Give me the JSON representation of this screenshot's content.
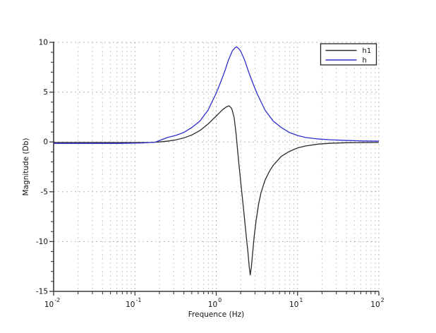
{
  "figure": {
    "background": "#ffffff"
  },
  "chart_data": {
    "type": "line",
    "title": "",
    "xlabel": "Frequence (Hz)",
    "ylabel": "Magnitude (Db)",
    "x_scale": "log",
    "y_scale": "linear",
    "xlim": [
      0.01,
      100
    ],
    "ylim": [
      -15,
      10
    ],
    "x_tick_base": "10",
    "x_tick_exponents": [
      -2,
      -1,
      0,
      1,
      2
    ],
    "y_tick_values": [
      10,
      5,
      0,
      -5,
      -10,
      -15
    ],
    "y_minor_step": 1,
    "grid": true,
    "grid_style": "dashed",
    "legend": {
      "position": "top-right",
      "entries": [
        "h1",
        "h"
      ]
    },
    "series": [
      {
        "name": "h1",
        "color": "#2b2b2b",
        "points": [
          [
            0.01,
            -0.05
          ],
          [
            0.02,
            -0.05
          ],
          [
            0.0316,
            -0.05
          ],
          [
            0.0631,
            -0.06
          ],
          [
            0.1,
            -0.06
          ],
          [
            0.158,
            -0.05
          ],
          [
            0.2,
            0.0
          ],
          [
            0.251,
            0.08
          ],
          [
            0.316,
            0.2
          ],
          [
            0.398,
            0.4
          ],
          [
            0.501,
            0.7
          ],
          [
            0.631,
            1.15
          ],
          [
            0.794,
            1.8
          ],
          [
            1.0,
            2.6
          ],
          [
            1.2,
            3.25
          ],
          [
            1.35,
            3.55
          ],
          [
            1.445,
            3.62
          ],
          [
            1.55,
            3.35
          ],
          [
            1.66,
            2.45
          ],
          [
            1.76,
            0.7
          ],
          [
            1.82,
            -0.6
          ],
          [
            1.91,
            -2.4
          ],
          [
            2.0,
            -4.0
          ],
          [
            2.14,
            -6.3
          ],
          [
            2.29,
            -8.7
          ],
          [
            2.45,
            -11.0
          ],
          [
            2.55,
            -12.6
          ],
          [
            2.62,
            -13.35
          ],
          [
            2.7,
            -12.6
          ],
          [
            2.8,
            -11.2
          ],
          [
            2.92,
            -9.6
          ],
          [
            3.09,
            -7.9
          ],
          [
            3.31,
            -6.3
          ],
          [
            3.55,
            -5.1
          ],
          [
            3.98,
            -3.85
          ],
          [
            4.47,
            -3.0
          ],
          [
            5.01,
            -2.35
          ],
          [
            6.31,
            -1.45
          ],
          [
            7.94,
            -0.95
          ],
          [
            10,
            -0.6
          ],
          [
            12.6,
            -0.4
          ],
          [
            17.8,
            -0.22
          ],
          [
            25.1,
            -0.13
          ],
          [
            39.8,
            -0.08
          ],
          [
            63.1,
            -0.06
          ],
          [
            100,
            -0.05
          ]
        ]
      },
      {
        "name": "h",
        "color": "#2e2ecf",
        "points": [
          [
            0.01,
            -0.15
          ],
          [
            0.02,
            -0.15
          ],
          [
            0.0316,
            -0.15
          ],
          [
            0.0631,
            -0.15
          ],
          [
            0.1,
            -0.12
          ],
          [
            0.126,
            -0.1
          ],
          [
            0.178,
            -0.02
          ],
          [
            0.251,
            0.45
          ],
          [
            0.316,
            0.65
          ],
          [
            0.398,
            0.95
          ],
          [
            0.501,
            1.45
          ],
          [
            0.631,
            2.1
          ],
          [
            0.794,
            3.2
          ],
          [
            1.0,
            4.9
          ],
          [
            1.12,
            5.9
          ],
          [
            1.26,
            7.0
          ],
          [
            1.41,
            8.2
          ],
          [
            1.58,
            9.15
          ],
          [
            1.7,
            9.45
          ],
          [
            1.78,
            9.55
          ],
          [
            1.9,
            9.35
          ],
          [
            2.0,
            9.1
          ],
          [
            2.24,
            8.2
          ],
          [
            2.51,
            7.0
          ],
          [
            2.82,
            5.9
          ],
          [
            3.16,
            4.9
          ],
          [
            3.98,
            3.2
          ],
          [
            5.01,
            2.1
          ],
          [
            6.31,
            1.45
          ],
          [
            7.94,
            0.95
          ],
          [
            10,
            0.65
          ],
          [
            12.6,
            0.45
          ],
          [
            17.8,
            0.3
          ],
          [
            25.1,
            0.22
          ],
          [
            39.8,
            0.15
          ],
          [
            63.1,
            0.1
          ],
          [
            100,
            0.08
          ]
        ]
      }
    ]
  },
  "style": {
    "axis_color": "#3a3a3a",
    "tick_label_color": "#111111",
    "grid_minor_color": "#cbcbcb",
    "grid_major_color": "#b5b5b5",
    "legend_border_color": "#222222",
    "legend_fill": "#ffffff"
  }
}
